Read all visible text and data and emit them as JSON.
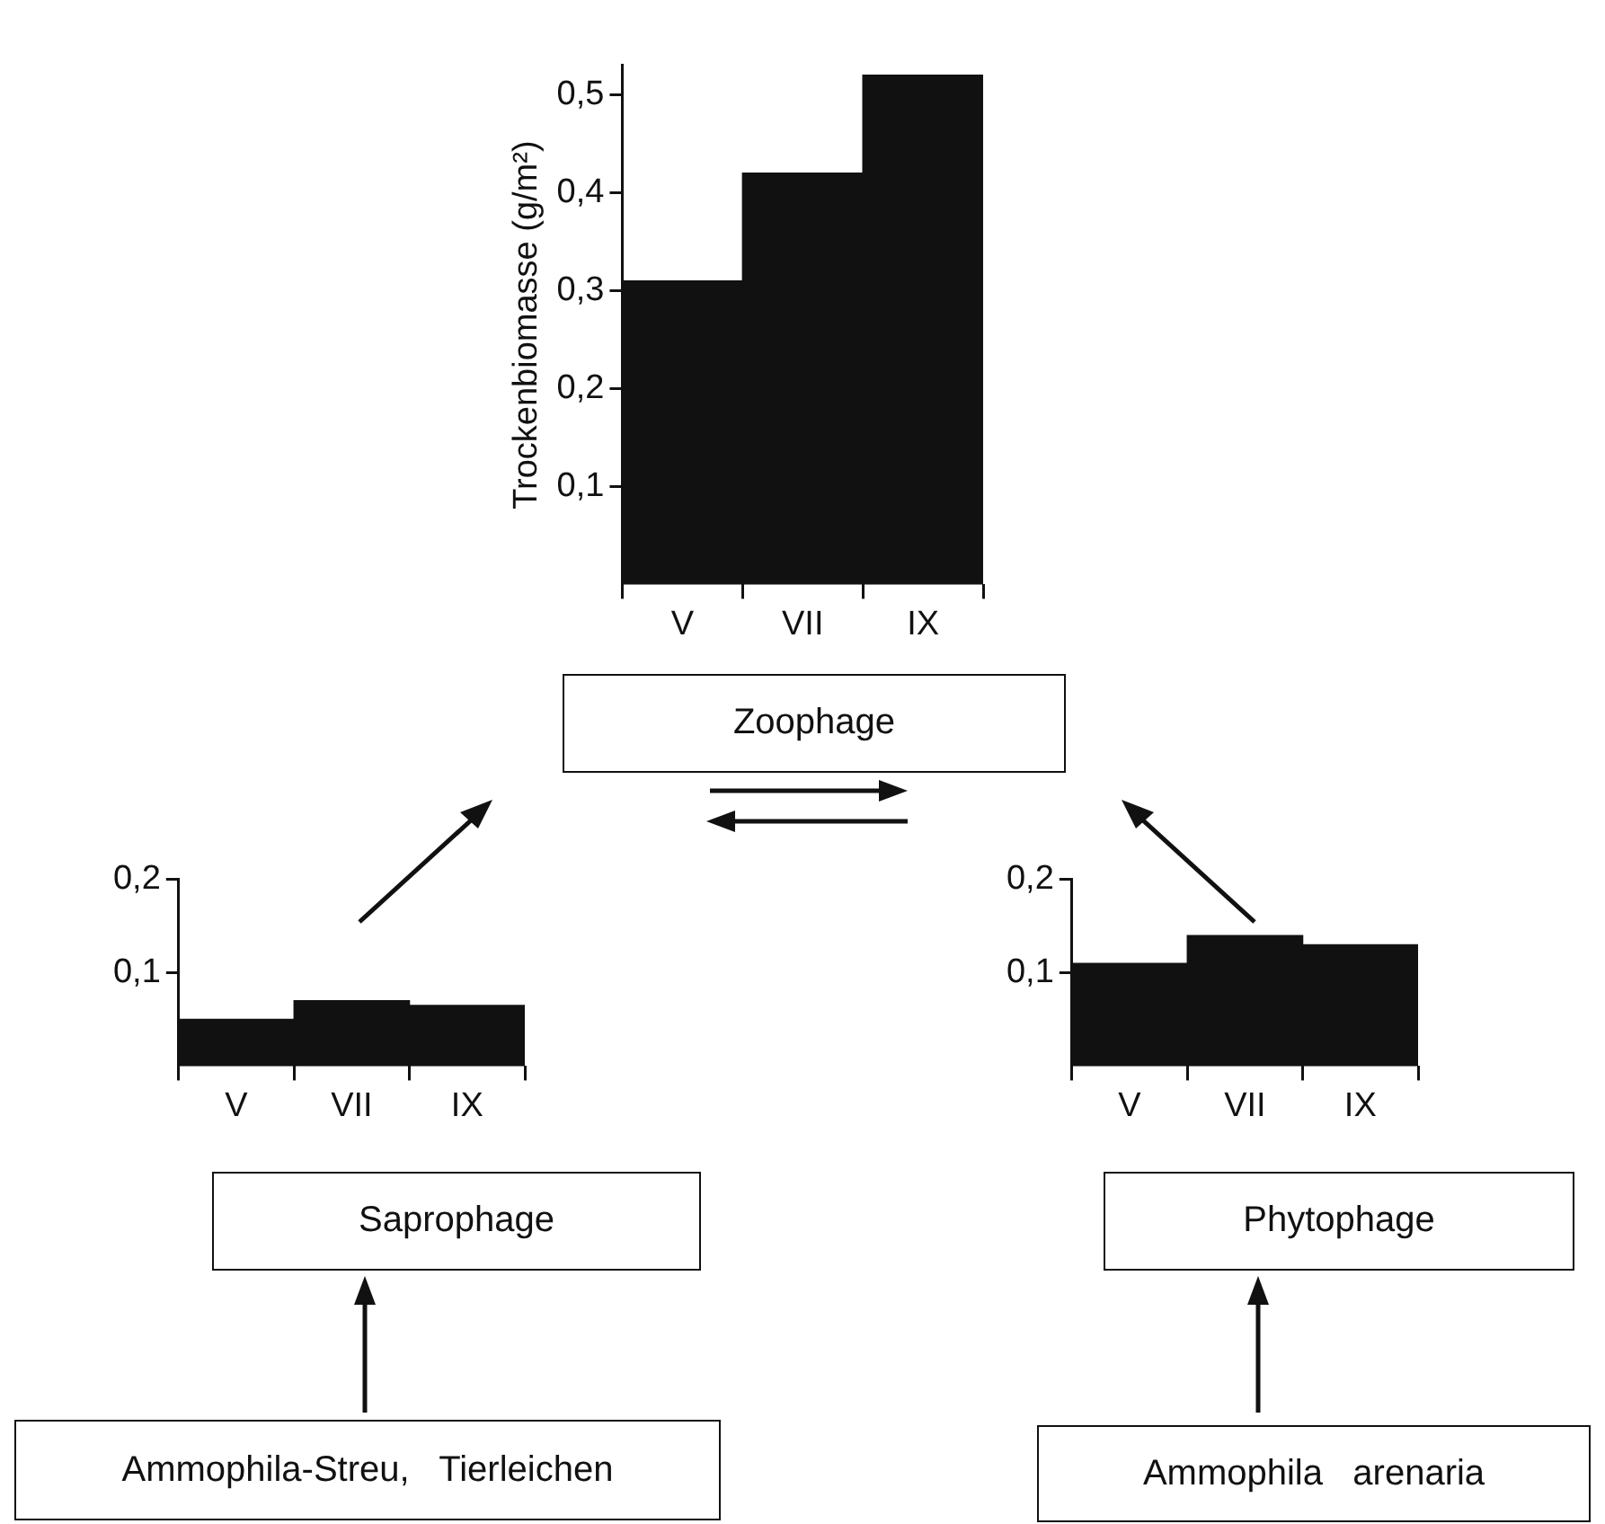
{
  "chart_data": [
    {
      "type": "bar",
      "ylabel": "Trockenbiomasse (g/m²)",
      "categories": [
        "V",
        "VII",
        "IX"
      ],
      "values": [
        0.31,
        0.42,
        0.52
      ],
      "color": "#111111",
      "ylim": [
        0,
        0.53
      ],
      "yticks": [
        {
          "value": 0.1,
          "label": "0,1"
        },
        {
          "value": 0.2,
          "label": "0,2"
        },
        {
          "value": 0.3,
          "label": "0,3"
        },
        {
          "value": 0.4,
          "label": "0,4"
        },
        {
          "value": 0.5,
          "label": "0,5"
        }
      ],
      "grid": false,
      "legend": false
    },
    {
      "type": "bar",
      "categories": [
        "V",
        "VII",
        "IX"
      ],
      "values": [
        0.05,
        0.07,
        0.065
      ],
      "color": "#111111",
      "ylim": [
        0,
        0.2
      ],
      "yticks": [
        {
          "value": 0.1,
          "label": "0,1"
        },
        {
          "value": 0.2,
          "label": "0,2"
        }
      ],
      "grid": false,
      "legend": false
    },
    {
      "type": "bar",
      "categories": [
        "V",
        "VII",
        "IX"
      ],
      "values": [
        0.11,
        0.14,
        0.13
      ],
      "color": "#111111",
      "ylim": [
        0,
        0.2
      ],
      "yticks": [
        {
          "value": 0.1,
          "label": "0,1"
        },
        {
          "value": 0.2,
          "label": "0,2"
        }
      ],
      "grid": false,
      "legend": false
    },
    {
      "type": "other",
      "annotations": [
        "Zoophage",
        "Saprophage",
        "Phytophage",
        "Ammophila-Streu,   Tierleichen",
        "Ammophila   arenaria"
      ]
    }
  ]
}
